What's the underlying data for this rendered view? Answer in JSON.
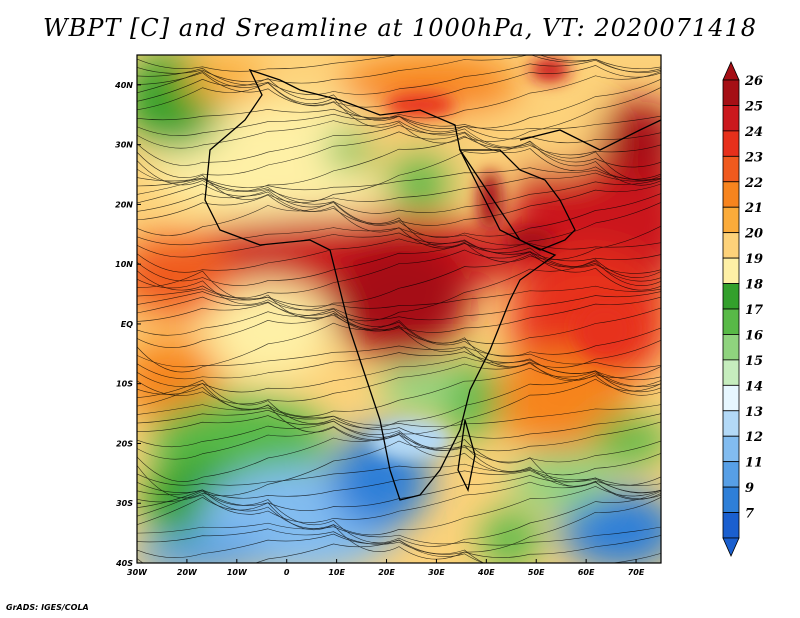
{
  "title": "WBPT [C] and Sreamline at 1000hPa, VT: 2020071418",
  "credit": "GrADS: IGES/COLA",
  "map": {
    "lat_labels": [
      "40N",
      "30N",
      "20N",
      "10N",
      "EQ",
      "10S",
      "20S",
      "30S",
      "40S"
    ],
    "lon_labels": [
      "30W",
      "20W",
      "10W",
      "0",
      "10E",
      "20E",
      "30E",
      "40E",
      "50E",
      "60E",
      "70E"
    ],
    "lat_range": [
      -40,
      45
    ],
    "lon_range": [
      -30,
      75
    ]
  },
  "colorbar": {
    "labels": [
      "26",
      "25",
      "24",
      "23",
      "22",
      "21",
      "20",
      "19",
      "18",
      "17",
      "16",
      "15",
      "14",
      "13",
      "12",
      "11",
      "9",
      "7"
    ],
    "colors": [
      "#a50f15",
      "#cb181d",
      "#e7301b",
      "#f05a1e",
      "#f7841e",
      "#fbab3a",
      "#fdd27a",
      "#fef0a6",
      "#33a02c",
      "#58b947",
      "#8fd37e",
      "#c6edbe",
      "#e7f7ff",
      "#b3d9f7",
      "#82bcf0",
      "#579fe6",
      "#2e7fd8",
      "#1a5fcf"
    ],
    "top_color": "#a50f15",
    "bottom_color": "#1a5fcf"
  }
}
